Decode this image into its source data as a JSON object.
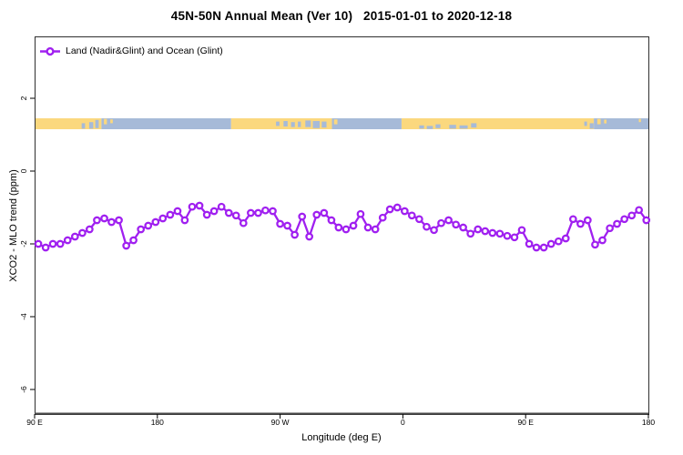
{
  "title": "45N-50N Annual Mean (Ver 10)   2015-01-01 to 2020-12-18",
  "legend": {
    "label": "Land (Nadir&Glint) and Ocean (Glint)"
  },
  "axes": {
    "x": {
      "label": "Longitude (deg E)",
      "ticks": [
        {
          "lon": 90,
          "label": "90 E"
        },
        {
          "lon": 180,
          "label": "180"
        },
        {
          "lon": 270,
          "label": "90 W"
        },
        {
          "lon": 360,
          "label": "0"
        },
        {
          "lon": 450,
          "label": "90 E"
        },
        {
          "lon": 540,
          "label": "180"
        }
      ]
    },
    "y": {
      "label": "XCO2 - MLO trend (ppm)",
      "ticks": [
        {
          "value": 2,
          "label": "2"
        },
        {
          "value": 0,
          "label": "0"
        },
        {
          "value": -2,
          "label": "-2"
        },
        {
          "value": -4,
          "label": "-4"
        },
        {
          "value": -6,
          "label": "-6"
        }
      ]
    }
  },
  "colors": {
    "series": "#A020F0",
    "marker_fill": "#ffffff",
    "land": "#FBD87E",
    "ocean": "#A6BAD8",
    "frame": "#2f2f2f",
    "axis": "#4a4a4a"
  },
  "chart_data": {
    "type": "line",
    "title": "45N-50N Annual Mean (Ver 10)   2015-01-01 to 2020-12-18",
    "xlabel": "Longitude (deg E)",
    "ylabel": "XCO2 - MLO trend (ppm)",
    "xlim": [
      90,
      540
    ],
    "ylim": [
      -6.7,
      3.7
    ],
    "grid": false,
    "legend_position": "top-left-inside",
    "x_note": "x axis wraps eastward: 90E -> 180 -> 90W -> 0 -> 90E -> 180",
    "series": [
      {
        "name": "Land (Nadir&Glint) and Ocean (Glint)",
        "marker": "open-circle",
        "x": [
          92.7,
          98.1,
          103.4,
          108.8,
          114.2,
          119.6,
          125.0,
          130.3,
          135.7,
          141.1,
          146.4,
          151.8,
          157.2,
          162.5,
          167.9,
          173.3,
          178.7,
          184.0,
          189.4,
          194.8,
          200.1,
          205.5,
          210.9,
          216.3,
          221.6,
          227.0,
          232.4,
          237.7,
          243.1,
          248.5,
          253.9,
          259.2,
          264.6,
          270.0,
          275.3,
          280.7,
          286.1,
          291.4,
          296.8,
          302.2,
          307.6,
          312.9,
          318.3,
          323.7,
          329.0,
          334.4,
          339.8,
          345.2,
          350.5,
          355.9,
          361.3,
          366.6,
          372.0,
          377.4,
          382.8,
          388.1,
          393.5,
          398.9,
          404.2,
          409.6,
          415.0,
          420.3,
          425.7,
          431.1,
          436.5,
          441.8,
          447.2,
          452.6,
          457.9,
          463.3,
          468.7,
          474.1,
          479.4,
          484.8,
          490.2,
          495.5,
          500.9,
          506.3,
          511.7,
          517.0,
          522.4,
          527.8,
          533.1,
          538.5
        ],
        "y": [
          -2.0,
          -2.1,
          -2.0,
          -2.0,
          -1.9,
          -1.8,
          -1.7,
          -1.6,
          -1.35,
          -1.3,
          -1.4,
          -1.35,
          -2.05,
          -1.9,
          -1.6,
          -1.5,
          -1.4,
          -1.3,
          -1.2,
          -1.1,
          -1.35,
          -0.98,
          -0.95,
          -1.2,
          -1.1,
          -0.98,
          -1.15,
          -1.22,
          -1.43,
          -1.15,
          -1.15,
          -1.08,
          -1.1,
          -1.45,
          -1.5,
          -1.75,
          -1.25,
          -1.8,
          -1.2,
          -1.15,
          -1.35,
          -1.55,
          -1.6,
          -1.5,
          -1.18,
          -1.55,
          -1.6,
          -1.28,
          -1.05,
          -1.0,
          -1.1,
          -1.22,
          -1.32,
          -1.53,
          -1.62,
          -1.43,
          -1.35,
          -1.47,
          -1.55,
          -1.72,
          -1.6,
          -1.65,
          -1.7,
          -1.72,
          -1.78,
          -1.82,
          -1.62,
          -2.0,
          -2.1,
          -2.1,
          -2.0,
          -1.93,
          -1.85,
          -1.32,
          -1.45,
          -1.35,
          -2.02,
          -1.9,
          -1.57,
          -1.45,
          -1.32,
          -1.22,
          -1.07,
          -1.35
        ]
      }
    ],
    "map_strip": {
      "description": "thin world-map band of the 45N-50N latitude zone: land=yellow, ocean=blue",
      "y_value_top": 1.45,
      "y_value_bottom": 1.15,
      "land_segments_lon": [
        [
          90,
          139
        ],
        [
          234,
          308
        ],
        [
          359,
          500
        ]
      ],
      "ocean_segments_lon": [
        [
          139,
          234
        ],
        [
          308,
          359
        ],
        [
          500,
          540
        ]
      ],
      "ocean_specks_on_land": [
        [
          124.5,
          2.5,
          0.45,
          0.5
        ],
        [
          130,
          3,
          0.35,
          0.6
        ],
        [
          134.5,
          2.5,
          0.15,
          0.75
        ],
        [
          267,
          2.5,
          0.3,
          0.4
        ],
        [
          272.5,
          3,
          0.25,
          0.5
        ],
        [
          278,
          2.8,
          0.35,
          0.45
        ],
        [
          283,
          2.2,
          0.3,
          0.5
        ],
        [
          288.5,
          4,
          0.2,
          0.6
        ],
        [
          294,
          5,
          0.25,
          0.65
        ],
        [
          300.5,
          3.5,
          0.3,
          0.55
        ],
        [
          372,
          3.5,
          0.65,
          0.3
        ],
        [
          377.5,
          4.5,
          0.7,
          0.28
        ],
        [
          384,
          3.5,
          0.55,
          0.35
        ],
        [
          394,
          5,
          0.6,
          0.35
        ],
        [
          401.5,
          6,
          0.65,
          0.3
        ],
        [
          410,
          4,
          0.45,
          0.4
        ],
        [
          493,
          2,
          0.3,
          0.4
        ],
        [
          497,
          2.8,
          0.45,
          0.5
        ]
      ],
      "land_specks_on_ocean": [
        [
          140.8,
          2.2,
          0.05,
          0.5
        ],
        [
          145.5,
          1.8,
          0.1,
          0.35
        ],
        [
          309.5,
          2.5,
          0.1,
          0.45
        ],
        [
          502.5,
          2.5,
          0.05,
          0.5
        ],
        [
          507.5,
          1.8,
          0.12,
          0.35
        ],
        [
          533,
          1.5,
          0.05,
          0.3
        ]
      ]
    }
  }
}
